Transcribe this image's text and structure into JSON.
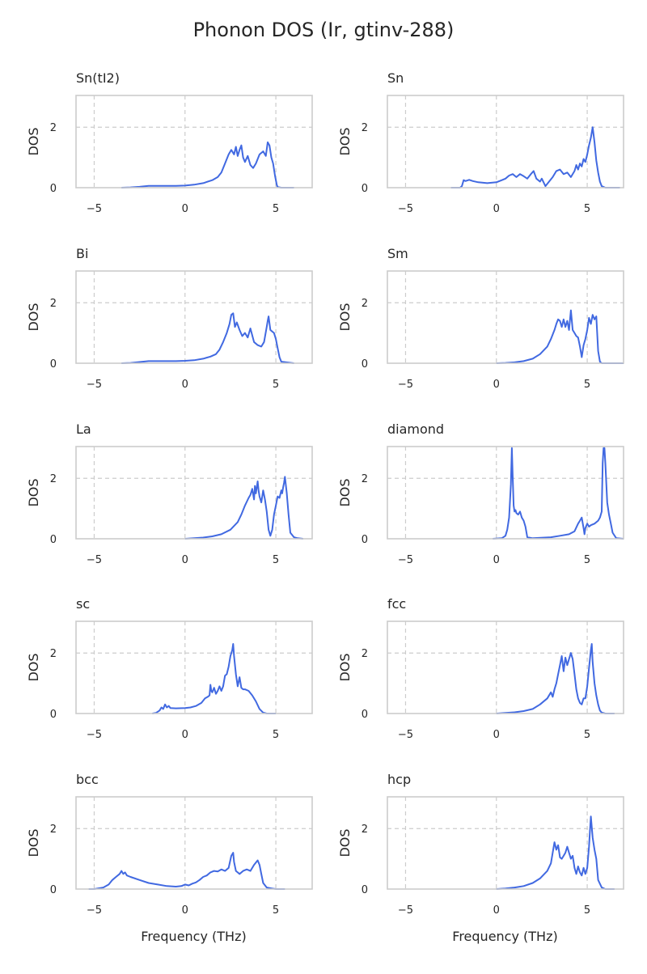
{
  "title": "Phonon DOS (Ir, gtinv-288)",
  "colors": {
    "line": "#4169e1",
    "frame": "#cccccc",
    "grid": "#cccccc",
    "text": "#262626"
  },
  "chart_data": [
    {
      "type": "line",
      "title": "Sn(tI2)",
      "xlabel": "",
      "ylabel": "DOS",
      "xlim": [
        -6.0,
        7.0
      ],
      "ylim": [
        0,
        3.05
      ],
      "xticks": [
        -5,
        0,
        5
      ],
      "yticks": [
        0,
        2
      ],
      "grid": true,
      "series": [
        {
          "x": [
            -3.5,
            -3.0,
            -2.5,
            -2.0,
            -1.5,
            -1.0,
            -0.5,
            0.0,
            0.5,
            1.0,
            1.5,
            1.8,
            2.0,
            2.2,
            2.4,
            2.55,
            2.7,
            2.8,
            2.9,
            3.0,
            3.1,
            3.2,
            3.3,
            3.45,
            3.6,
            3.75,
            3.9,
            4.1,
            4.3,
            4.45,
            4.55,
            4.65,
            4.75,
            4.85,
            4.95,
            5.05,
            5.1,
            5.3,
            6.0
          ],
          "y": [
            0.0,
            0.01,
            0.03,
            0.06,
            0.06,
            0.06,
            0.06,
            0.07,
            0.1,
            0.15,
            0.25,
            0.35,
            0.5,
            0.8,
            1.1,
            1.25,
            1.1,
            1.35,
            1.05,
            1.25,
            1.4,
            1.0,
            0.85,
            1.05,
            0.75,
            0.65,
            0.8,
            1.1,
            1.2,
            1.05,
            1.5,
            1.4,
            1.0,
            0.8,
            0.4,
            0.1,
            0.02,
            0.0,
            0.0
          ]
        }
      ]
    },
    {
      "type": "line",
      "title": "Sn",
      "xlabel": "",
      "ylabel": "DOS",
      "xlim": [
        -6.0,
        7.0
      ],
      "ylim": [
        0,
        3.05
      ],
      "xticks": [
        -5,
        0,
        5
      ],
      "yticks": [
        0,
        2
      ],
      "grid": true,
      "series": [
        {
          "x": [
            -2.5,
            -2.0,
            -1.9,
            -1.8,
            -1.7,
            -1.5,
            -1.3,
            -1.0,
            -0.5,
            0.0,
            0.3,
            0.5,
            0.7,
            0.9,
            1.1,
            1.3,
            1.5,
            1.7,
            1.9,
            2.05,
            2.2,
            2.4,
            2.5,
            2.7,
            2.9,
            3.1,
            3.3,
            3.5,
            3.7,
            3.9,
            4.1,
            4.3,
            4.4,
            4.5,
            4.6,
            4.7,
            4.8,
            4.9,
            5.0,
            5.1,
            5.2,
            5.3,
            5.4,
            5.5,
            5.6,
            5.7,
            5.8,
            6.0,
            6.8
          ],
          "y": [
            0.0,
            0.0,
            0.05,
            0.25,
            0.22,
            0.26,
            0.22,
            0.18,
            0.15,
            0.18,
            0.25,
            0.3,
            0.4,
            0.45,
            0.35,
            0.45,
            0.38,
            0.3,
            0.45,
            0.55,
            0.3,
            0.2,
            0.3,
            0.05,
            0.2,
            0.35,
            0.55,
            0.6,
            0.45,
            0.5,
            0.35,
            0.55,
            0.75,
            0.6,
            0.8,
            0.7,
            0.95,
            0.85,
            1.1,
            1.4,
            1.65,
            2.0,
            1.5,
            0.9,
            0.5,
            0.2,
            0.05,
            0.0,
            0.0
          ]
        }
      ]
    },
    {
      "type": "line",
      "title": "Bi",
      "xlabel": "",
      "ylabel": "DOS",
      "xlim": [
        -6.0,
        7.0
      ],
      "ylim": [
        0,
        3.05
      ],
      "xticks": [
        -5,
        0,
        5
      ],
      "yticks": [
        0,
        2
      ],
      "grid": true,
      "series": [
        {
          "x": [
            -3.5,
            -3.0,
            -2.5,
            -2.0,
            -1.5,
            -1.0,
            -0.5,
            0.0,
            0.5,
            1.0,
            1.4,
            1.7,
            1.9,
            2.1,
            2.3,
            2.45,
            2.55,
            2.65,
            2.75,
            2.85,
            3.0,
            3.15,
            3.3,
            3.45,
            3.6,
            3.8,
            4.0,
            4.2,
            4.35,
            4.5,
            4.55,
            4.6,
            4.7,
            4.8,
            4.9,
            5.0,
            5.1,
            5.2,
            5.3,
            6.0
          ],
          "y": [
            0.0,
            0.01,
            0.04,
            0.07,
            0.07,
            0.07,
            0.07,
            0.08,
            0.1,
            0.15,
            0.22,
            0.3,
            0.45,
            0.7,
            1.0,
            1.3,
            1.6,
            1.65,
            1.2,
            1.35,
            1.1,
            0.9,
            1.0,
            0.85,
            1.15,
            0.7,
            0.6,
            0.55,
            0.7,
            1.2,
            1.4,
            1.55,
            1.1,
            1.05,
            1.0,
            0.8,
            0.5,
            0.2,
            0.05,
            0.0
          ]
        }
      ]
    },
    {
      "type": "line",
      "title": "Sm",
      "xlabel": "",
      "ylabel": "DOS",
      "xlim": [
        -6.0,
        7.0
      ],
      "ylim": [
        0,
        3.05
      ],
      "xticks": [
        -5,
        0,
        5
      ],
      "yticks": [
        0,
        2
      ],
      "grid": true,
      "series": [
        {
          "x": [
            0.0,
            0.5,
            1.0,
            1.5,
            2.0,
            2.4,
            2.8,
            3.0,
            3.2,
            3.3,
            3.4,
            3.5,
            3.6,
            3.7,
            3.8,
            3.9,
            4.0,
            4.1,
            4.2,
            4.3,
            4.4,
            4.5,
            4.6,
            4.7,
            4.8,
            4.9,
            5.0,
            5.1,
            5.2,
            5.3,
            5.4,
            5.5,
            5.6,
            5.7,
            5.8,
            6.0,
            7.0
          ],
          "y": [
            0.0,
            0.01,
            0.03,
            0.07,
            0.15,
            0.3,
            0.55,
            0.8,
            1.1,
            1.3,
            1.45,
            1.4,
            1.2,
            1.45,
            1.2,
            1.4,
            1.1,
            1.75,
            1.1,
            1.0,
            0.9,
            0.85,
            0.55,
            0.2,
            0.6,
            0.8,
            1.1,
            1.5,
            1.3,
            1.6,
            1.45,
            1.55,
            0.4,
            0.05,
            0.0,
            0.0,
            0.0
          ]
        }
      ]
    },
    {
      "type": "line",
      "title": "La",
      "xlabel": "",
      "ylabel": "DOS",
      "xlim": [
        -6.0,
        7.0
      ],
      "ylim": [
        0,
        3.05
      ],
      "xticks": [
        -5,
        0,
        5
      ],
      "yticks": [
        0,
        2
      ],
      "grid": true,
      "series": [
        {
          "x": [
            0.0,
            0.5,
            1.0,
            1.5,
            2.0,
            2.5,
            2.9,
            3.1,
            3.3,
            3.5,
            3.6,
            3.7,
            3.8,
            3.85,
            3.9,
            4.0,
            4.05,
            4.1,
            4.2,
            4.3,
            4.4,
            4.5,
            4.6,
            4.7,
            4.8,
            4.9,
            5.0,
            5.1,
            5.2,
            5.3,
            5.35,
            5.4,
            5.45,
            5.5,
            5.6,
            5.7,
            5.8,
            6.0,
            6.2,
            6.5
          ],
          "y": [
            0.0,
            0.02,
            0.04,
            0.08,
            0.15,
            0.3,
            0.55,
            0.8,
            1.1,
            1.35,
            1.45,
            1.65,
            1.3,
            1.75,
            1.5,
            1.9,
            1.6,
            1.4,
            1.2,
            1.6,
            1.3,
            0.9,
            0.3,
            0.1,
            0.3,
            0.8,
            1.1,
            1.4,
            1.35,
            1.6,
            1.5,
            1.7,
            1.85,
            2.05,
            1.5,
            0.8,
            0.2,
            0.05,
            0.02,
            0.0
          ]
        }
      ]
    },
    {
      "type": "line",
      "title": "diamond",
      "xlabel": "",
      "ylabel": "DOS",
      "xlim": [
        -6.0,
        7.0
      ],
      "ylim": [
        0,
        3.05
      ],
      "xticks": [
        -5,
        0,
        5
      ],
      "yticks": [
        0,
        2
      ],
      "grid": true,
      "series": [
        {
          "x": [
            -0.2,
            0.3,
            0.5,
            0.6,
            0.7,
            0.8,
            0.85,
            0.9,
            0.95,
            1.0,
            1.05,
            1.1,
            1.2,
            1.3,
            1.4,
            1.5,
            1.6,
            1.7,
            2.0,
            3.0,
            3.5,
            4.0,
            4.3,
            4.5,
            4.6,
            4.7,
            4.8,
            4.85,
            4.9,
            5.0,
            5.1,
            5.2,
            5.4,
            5.6,
            5.7,
            5.8,
            5.85,
            5.9,
            5.95,
            6.0,
            6.1,
            6.2,
            6.3,
            6.4,
            6.6,
            7.0
          ],
          "y": [
            0.0,
            0.02,
            0.1,
            0.3,
            0.7,
            1.8,
            3.0,
            2.0,
            1.1,
            0.9,
            0.95,
            0.85,
            0.8,
            0.9,
            0.7,
            0.6,
            0.4,
            0.05,
            0.02,
            0.05,
            0.1,
            0.15,
            0.25,
            0.5,
            0.6,
            0.7,
            0.35,
            0.15,
            0.35,
            0.5,
            0.4,
            0.45,
            0.5,
            0.6,
            0.7,
            0.9,
            2.5,
            3.0,
            3.0,
            2.5,
            1.2,
            0.8,
            0.5,
            0.2,
            0.02,
            0.0
          ]
        }
      ]
    },
    {
      "type": "line",
      "title": "sc",
      "xlabel": "",
      "ylabel": "DOS",
      "xlim": [
        -6.0,
        7.0
      ],
      "ylim": [
        0,
        3.05
      ],
      "xticks": [
        -5,
        0,
        5
      ],
      "yticks": [
        0,
        2
      ],
      "grid": true,
      "series": [
        {
          "x": [
            -1.8,
            -1.6,
            -1.4,
            -1.3,
            -1.2,
            -1.1,
            -1.0,
            -0.9,
            -0.8,
            -0.5,
            0.0,
            0.3,
            0.6,
            0.9,
            1.1,
            1.25,
            1.35,
            1.4,
            1.45,
            1.5,
            1.6,
            1.7,
            1.8,
            1.9,
            2.0,
            2.1,
            2.2,
            2.3,
            2.4,
            2.5,
            2.6,
            2.65,
            2.7,
            2.8,
            2.9,
            3.0,
            3.1,
            3.2,
            3.3,
            3.5,
            3.7,
            3.9,
            4.1,
            4.3,
            4.5,
            5.0
          ],
          "y": [
            0.0,
            0.02,
            0.1,
            0.2,
            0.15,
            0.3,
            0.2,
            0.25,
            0.18,
            0.17,
            0.18,
            0.2,
            0.25,
            0.35,
            0.5,
            0.55,
            0.6,
            0.95,
            0.75,
            0.7,
            0.85,
            0.65,
            0.75,
            0.9,
            0.75,
            0.9,
            1.25,
            1.3,
            1.55,
            1.9,
            2.1,
            2.3,
            1.9,
            1.3,
            0.9,
            1.2,
            0.85,
            0.8,
            0.8,
            0.75,
            0.6,
            0.4,
            0.15,
            0.03,
            0.0,
            0.0
          ]
        }
      ]
    },
    {
      "type": "line",
      "title": "fcc",
      "xlabel": "",
      "ylabel": "DOS",
      "xlim": [
        -6.0,
        7.0
      ],
      "ylim": [
        0,
        3.05
      ],
      "xticks": [
        -5,
        0,
        5
      ],
      "yticks": [
        0,
        2
      ],
      "grid": true,
      "series": [
        {
          "x": [
            0.0,
            0.5,
            1.0,
            1.5,
            2.0,
            2.4,
            2.8,
            3.0,
            3.1,
            3.2,
            3.3,
            3.4,
            3.5,
            3.6,
            3.7,
            3.8,
            3.9,
            4.0,
            4.1,
            4.2,
            4.3,
            4.4,
            4.5,
            4.6,
            4.7,
            4.8,
            4.9,
            5.0,
            5.1,
            5.2,
            5.25,
            5.3,
            5.4,
            5.5,
            5.6,
            5.7,
            5.8,
            6.0,
            6.5
          ],
          "y": [
            0.0,
            0.02,
            0.04,
            0.08,
            0.15,
            0.3,
            0.5,
            0.7,
            0.55,
            0.8,
            1.0,
            1.3,
            1.6,
            1.9,
            1.4,
            1.85,
            1.6,
            1.8,
            2.0,
            1.8,
            1.3,
            0.8,
            0.5,
            0.35,
            0.3,
            0.5,
            0.5,
            0.9,
            1.5,
            2.1,
            2.3,
            1.7,
            1.0,
            0.6,
            0.3,
            0.1,
            0.03,
            0.0,
            0.0
          ]
        }
      ]
    },
    {
      "type": "line",
      "title": "bcc",
      "xlabel": "",
      "ylabel": "DOS",
      "xlim": [
        -6.0,
        7.0
      ],
      "ylim": [
        0,
        3.05
      ],
      "xticks": [
        -5,
        0,
        5
      ],
      "yticks": [
        0,
        2
      ],
      "grid": true,
      "series": [
        {
          "x": [
            -5.3,
            -5.0,
            -4.5,
            -4.2,
            -4.0,
            -3.8,
            -3.6,
            -3.5,
            -3.4,
            -3.3,
            -3.2,
            -3.0,
            -2.5,
            -2.0,
            -1.5,
            -1.0,
            -0.5,
            -0.2,
            0.0,
            0.2,
            0.4,
            0.6,
            0.8,
            1.0,
            1.2,
            1.4,
            1.6,
            1.8,
            2.0,
            2.2,
            2.4,
            2.55,
            2.65,
            2.7,
            2.8,
            2.9,
            3.0,
            3.2,
            3.4,
            3.6,
            3.8,
            4.0,
            4.1,
            4.2,
            4.3,
            4.5,
            4.8,
            5.0,
            5.5
          ],
          "y": [
            0.0,
            0.0,
            0.05,
            0.15,
            0.3,
            0.4,
            0.5,
            0.6,
            0.5,
            0.55,
            0.45,
            0.4,
            0.3,
            0.2,
            0.15,
            0.1,
            0.08,
            0.1,
            0.15,
            0.12,
            0.18,
            0.22,
            0.3,
            0.4,
            0.45,
            0.55,
            0.6,
            0.58,
            0.65,
            0.6,
            0.7,
            1.1,
            1.2,
            0.9,
            0.6,
            0.55,
            0.5,
            0.6,
            0.65,
            0.6,
            0.8,
            0.95,
            0.8,
            0.5,
            0.2,
            0.05,
            0.02,
            0.0,
            0.0
          ]
        }
      ]
    },
    {
      "type": "line",
      "title": "hcp",
      "xlabel": "",
      "ylabel": "DOS",
      "xlim": [
        -6.0,
        7.0
      ],
      "ylim": [
        0,
        3.05
      ],
      "xticks": [
        -5,
        0,
        5
      ],
      "yticks": [
        0,
        2
      ],
      "grid": true,
      "series": [
        {
          "x": [
            0.0,
            0.5,
            1.0,
            1.5,
            2.0,
            2.4,
            2.8,
            3.0,
            3.1,
            3.2,
            3.3,
            3.4,
            3.5,
            3.6,
            3.7,
            3.8,
            3.9,
            4.0,
            4.1,
            4.2,
            4.3,
            4.4,
            4.5,
            4.6,
            4.7,
            4.8,
            4.9,
            5.0,
            5.1,
            5.15,
            5.2,
            5.3,
            5.4,
            5.5,
            5.6,
            5.8,
            6.0,
            6.5
          ],
          "y": [
            0.0,
            0.02,
            0.05,
            0.1,
            0.2,
            0.35,
            0.6,
            0.85,
            1.2,
            1.55,
            1.3,
            1.45,
            1.05,
            1.0,
            1.1,
            1.2,
            1.4,
            1.2,
            1.0,
            1.1,
            0.7,
            0.5,
            0.75,
            0.55,
            0.45,
            0.7,
            0.5,
            0.7,
            1.4,
            1.9,
            2.4,
            1.7,
            1.3,
            1.0,
            0.3,
            0.05,
            0.0,
            0.0
          ]
        }
      ]
    }
  ],
  "xlabel_bottom": "Frequency (THz)"
}
